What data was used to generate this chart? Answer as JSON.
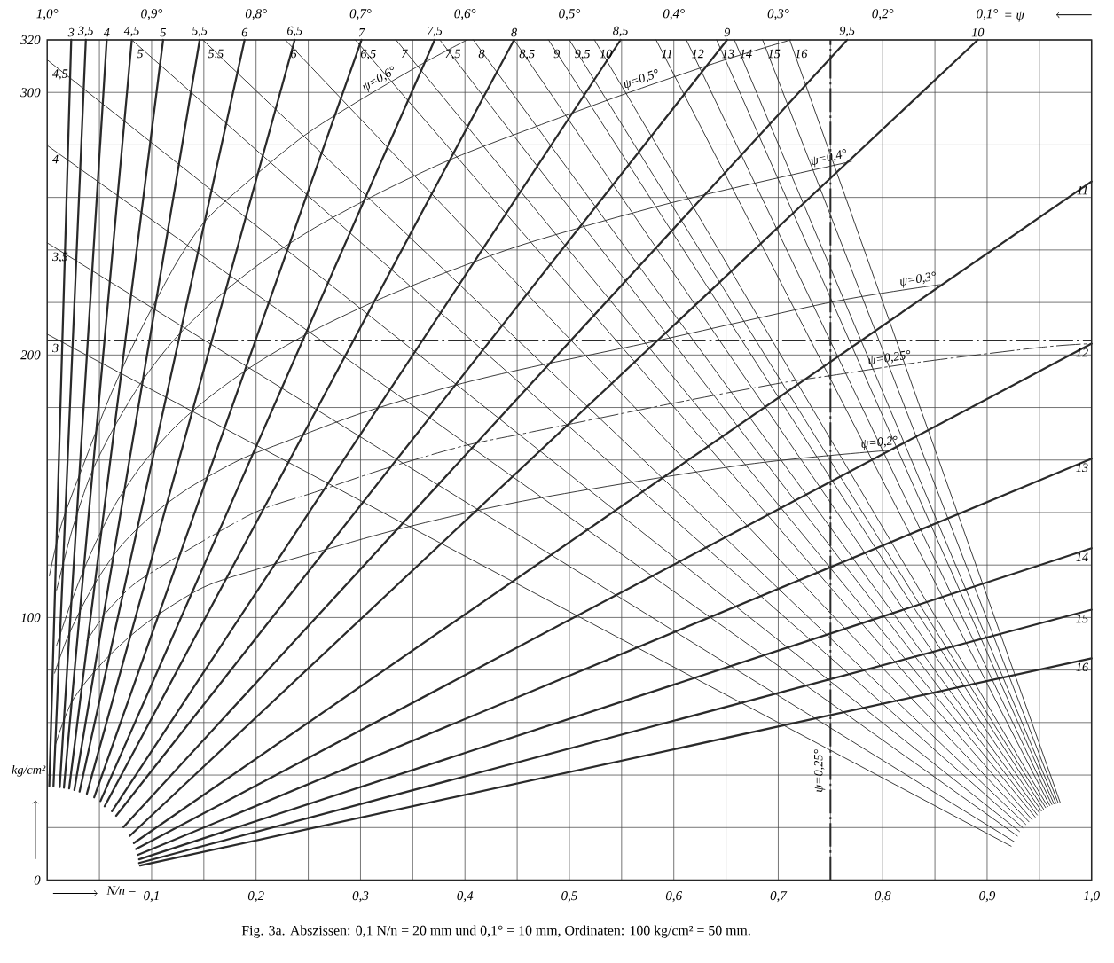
{
  "chart_data": {
    "type": "line",
    "xlabel": "N/n =",
    "ylabel": "kg/cm²",
    "x2label": "= ψ",
    "xlim": [
      0,
      1.0
    ],
    "ylim": [
      0,
      320
    ],
    "xticks": [
      {
        "value": 0.05,
        "label": null
      },
      {
        "value": 0.1,
        "label": "0,1"
      },
      {
        "value": 0.15,
        "label": null
      },
      {
        "value": 0.2,
        "label": "0,2"
      },
      {
        "value": 0.25,
        "label": null
      },
      {
        "value": 0.3,
        "label": "0,3"
      },
      {
        "value": 0.35,
        "label": null
      },
      {
        "value": 0.4,
        "label": "0,4"
      },
      {
        "value": 0.45,
        "label": null
      },
      {
        "value": 0.5,
        "label": "0,5"
      },
      {
        "value": 0.55,
        "label": null
      },
      {
        "value": 0.6,
        "label": "0,6"
      },
      {
        "value": 0.65,
        "label": null
      },
      {
        "value": 0.7,
        "label": "0,7"
      },
      {
        "value": 0.75,
        "label": null
      },
      {
        "value": 0.8,
        "label": "0,8"
      },
      {
        "value": 0.85,
        "label": null
      },
      {
        "value": 0.9,
        "label": "0,9"
      },
      {
        "value": 0.95,
        "label": null
      },
      {
        "value": 1.0,
        "label": "1,0"
      }
    ],
    "yticks": [
      0,
      {
        "value": 20,
        "label": null
      },
      {
        "value": 40,
        "label": null
      },
      {
        "value": 60,
        "label": null
      },
      {
        "value": 80,
        "label": null
      },
      100,
      {
        "value": 120,
        "label": null
      },
      {
        "value": 140,
        "label": null
      },
      {
        "value": 160,
        "label": null
      },
      {
        "value": 180,
        "label": null
      },
      200,
      {
        "value": 220,
        "label": null
      },
      {
        "value": 240,
        "label": null
      },
      {
        "value": 260,
        "label": null
      },
      {
        "value": 280,
        "label": null
      },
      300,
      320
    ],
    "x2lim": [
      1.0,
      0.0
    ],
    "x2ticks": [
      {
        "value": 1.0,
        "label": "1,0°"
      },
      {
        "value": 0.9,
        "label": "0,9°"
      },
      {
        "value": 0.8,
        "label": "0,8°"
      },
      {
        "value": 0.7,
        "label": "0,7°"
      },
      {
        "value": 0.6,
        "label": "0,6°"
      },
      {
        "value": 0.5,
        "label": "0,5°"
      },
      {
        "value": 0.4,
        "label": "0,4°"
      },
      {
        "value": 0.3,
        "label": "0,3°"
      },
      {
        "value": 0.2,
        "label": "0,2°"
      },
      {
        "value": 0.1,
        "label": "0,1°"
      }
    ],
    "grid": true,
    "ref_lines": [
      {
        "axis": "y",
        "value": 205.5,
        "line_style": "dashed",
        "color": "#2a2a2a"
      },
      {
        "axis": "x2",
        "value": 0.25,
        "label": "ψ=0,25°",
        "line_style": "dashed",
        "color": "#2a2a2a"
      }
    ],
    "annotations": [
      "Fig. 3a.  Abszissen: 0,1 N/n = 20 mm und 0,1° = 10 mm, Ordinaten: 100 kg/cm² = 50 mm."
    ],
    "series": [
      {
        "name": "3",
        "color": "#2a2a2a",
        "x": [
          0.002,
          0.023
        ],
        "values": [
          35.7,
          320
        ]
      },
      {
        "name": "3,5",
        "color": "#2a2a2a",
        "x": [
          0.006,
          0.037
        ],
        "values": [
          35.7,
          320
        ]
      },
      {
        "name": "4",
        "color": "#2a2a2a",
        "x": [
          0.012,
          0.057
        ],
        "values": [
          35.4,
          320
        ]
      },
      {
        "name": "4,5",
        "color": "#2a2a2a",
        "x": [
          0.016,
          0.081
        ],
        "values": [
          35.2,
          320
        ]
      },
      {
        "name": "5",
        "color": "#2a2a2a",
        "x": [
          0.021,
          0.111
        ],
        "values": [
          34.9,
          320
        ]
      },
      {
        "name": "5,5",
        "color": "#2a2a2a",
        "x": [
          0.026,
          0.146
        ],
        "values": [
          34.3,
          320
        ]
      },
      {
        "name": "6",
        "color": "#2a2a2a",
        "x": [
          0.031,
          0.189
        ],
        "values": [
          33.7,
          320
        ]
      },
      {
        "name": "6,5",
        "color": "#2a2a2a",
        "x": [
          0.038,
          0.237
        ],
        "values": [
          32.9,
          320
        ]
      },
      {
        "name": "7",
        "color": "#2a2a2a",
        "x": [
          0.045,
          0.301
        ],
        "values": [
          31.5,
          320
        ]
      },
      {
        "name": "7,5",
        "color": "#2a2a2a",
        "x": [
          0.051,
          0.371
        ],
        "values": [
          30.1,
          320
        ]
      },
      {
        "name": "8",
        "color": "#2a2a2a",
        "x": [
          0.055,
          0.447
        ],
        "values": [
          28.1,
          320
        ]
      },
      {
        "name": "8,5",
        "color": "#2a2a2a",
        "x": [
          0.062,
          0.549
        ],
        "values": [
          26.2,
          320
        ]
      },
      {
        "name": "9",
        "color": "#2a2a2a",
        "x": [
          0.066,
          0.651
        ],
        "values": [
          24.5,
          320
        ]
      },
      {
        "name": "9,5",
        "color": "#2a2a2a",
        "x": [
          0.073,
          0.766
        ],
        "values": [
          20.2,
          320
        ]
      },
      {
        "name": "10",
        "color": "#2a2a2a",
        "x": [
          0.079,
          0.891
        ],
        "values": [
          16.8,
          320
        ]
      },
      {
        "name": "11",
        "color": "#2a2a2a",
        "x": [
          0.083,
          1.0
        ],
        "values": [
          14.1,
          266.1
        ]
      },
      {
        "name": "12",
        "color": "#2a2a2a",
        "x": [
          0.085,
          1.0
        ],
        "values": [
          11.8,
          204.3
        ]
      },
      {
        "name": "13",
        "color": "#2a2a2a",
        "x": [
          0.087,
          1.0
        ],
        "values": [
          9.6,
          160.5
        ]
      },
      {
        "name": "14",
        "color": "#2a2a2a",
        "x": [
          0.088,
          1.0
        ],
        "values": [
          7.9,
          126.4
        ]
      },
      {
        "name": "15",
        "color": "#2a2a2a",
        "x": [
          0.088,
          1.0
        ],
        "values": [
          6.5,
          103.0
        ]
      },
      {
        "name": "16",
        "color": "#2a2a2a",
        "x": [
          0.089,
          1.0
        ],
        "values": [
          5.5,
          84.5
        ]
      },
      {
        "name": "3",
        "color": "#2a2a2a",
        "x": [
          0.923,
          0.0
        ],
        "values": [
          12.9,
          207.9
        ]
      },
      {
        "name": "3,5",
        "color": "#2a2a2a",
        "x": [
          0.926,
          0.0
        ],
        "values": [
          14.6,
          242.7
        ]
      },
      {
        "name": "4",
        "color": "#2a2a2a",
        "x": [
          0.929,
          0.0
        ],
        "values": [
          16.8,
          279.8
        ]
      },
      {
        "name": "4,5",
        "color": "#2a2a2a",
        "x": [
          0.931,
          0.0
        ],
        "values": [
          18.5,
          312.4
        ]
      },
      {
        "name": "5",
        "color": "#2a2a2a",
        "x": [
          0.934,
          0.081
        ],
        "values": [
          20.0,
          320
        ]
      },
      {
        "name": "5,5",
        "color": "#2a2a2a",
        "x": [
          0.937,
          0.149
        ],
        "values": [
          21.2,
          320
        ]
      },
      {
        "name": "6",
        "color": "#2a2a2a",
        "x": [
          0.94,
          0.228
        ],
        "values": [
          22.2,
          320
        ]
      },
      {
        "name": "6,5",
        "color": "#2a2a2a",
        "x": [
          0.943,
          0.295
        ],
        "values": [
          23.0,
          320
        ]
      },
      {
        "name": "7",
        "color": "#2a2a2a",
        "x": [
          0.946,
          0.334
        ],
        "values": [
          24.0,
          320
        ]
      },
      {
        "name": "7,5",
        "color": "#2a2a2a",
        "x": [
          0.948,
          0.376
        ],
        "values": [
          24.8,
          320
        ]
      },
      {
        "name": "8",
        "color": "#2a2a2a",
        "x": [
          0.95,
          0.408
        ],
        "values": [
          25.6,
          320
        ]
      },
      {
        "name": "8,5",
        "color": "#2a2a2a",
        "x": [
          0.952,
          0.447
        ],
        "values": [
          26.3,
          320
        ]
      },
      {
        "name": "9",
        "color": "#2a2a2a",
        "x": [
          0.954,
          0.48
        ],
        "values": [
          27.0,
          320
        ]
      },
      {
        "name": "9,5",
        "color": "#2a2a2a",
        "x": [
          0.956,
          0.5
        ],
        "values": [
          27.6,
          320
        ]
      },
      {
        "name": "10",
        "color": "#2a2a2a",
        "x": [
          0.958,
          0.524
        ],
        "values": [
          28.0,
          320
        ]
      },
      {
        "name": "11",
        "color": "#2a2a2a",
        "x": [
          0.96,
          0.583
        ],
        "values": [
          28.4,
          320
        ]
      },
      {
        "name": "12",
        "color": "#2a2a2a",
        "x": [
          0.962,
          0.612
        ],
        "values": [
          28.8,
          320
        ]
      },
      {
        "name": "13",
        "color": "#2a2a2a",
        "x": [
          0.964,
          0.641
        ],
        "values": [
          29.0,
          320
        ]
      },
      {
        "name": "14",
        "color": "#2a2a2a",
        "x": [
          0.966,
          0.658
        ],
        "values": [
          29.2,
          320
        ]
      },
      {
        "name": "15",
        "color": "#2a2a2a",
        "x": [
          0.968,
          0.685
        ],
        "values": [
          29.4,
          320
        ]
      },
      {
        "name": "16",
        "color": "#2a2a2a",
        "x": [
          0.97,
          0.711
        ],
        "values": [
          29.5,
          320
        ]
      },
      {
        "name": "ψ=0,6°",
        "color": "#2a2a2a",
        "x": [
          0.002,
          0.014,
          0.037,
          0.059,
          0.082,
          0.105,
          0.127,
          0.153,
          0.195,
          0.246,
          0.295,
          0.356,
          0.402
        ],
        "values": [
          115.8,
          135.9,
          160.6,
          183.2,
          203.5,
          221.4,
          237.2,
          251.8,
          267.0,
          283.5,
          296.0,
          310.2,
          320
        ]
      },
      {
        "name": "ψ=0,5°",
        "color": "#2a2a2a",
        "x": [
          0.009,
          0.024,
          0.042,
          0.064,
          0.091,
          0.122,
          0.158,
          0.202,
          0.256,
          0.322,
          0.389,
          0.464,
          0.553,
          0.648,
          0.712
        ],
        "values": [
          110.5,
          133.5,
          154.7,
          172.4,
          190.1,
          206.0,
          220.1,
          234.3,
          248.4,
          262.5,
          274.9,
          286.4,
          299.4,
          312.3,
          320
        ]
      },
      {
        "name": "ψ=0,4°",
        "color": "#2a2a2a",
        "x": [
          0.009,
          0.024,
          0.042,
          0.064,
          0.091,
          0.122,
          0.158,
          0.202,
          0.256,
          0.322,
          0.389,
          0.464,
          0.6,
          0.77
        ],
        "values": [
          89.4,
          107.0,
          124.7,
          142.3,
          158.3,
          172.4,
          184.8,
          197.2,
          209.5,
          221.9,
          232.5,
          243.1,
          258.2,
          273.7
        ]
      },
      {
        "name": "ψ=0,3°",
        "color": "#2a2a2a",
        "x": [
          0.007,
          0.02,
          0.042,
          0.069,
          0.1,
          0.136,
          0.184,
          0.229,
          0.3,
          0.389,
          0.464,
          0.577,
          0.753,
          0.855
        ],
        "values": [
          78.8,
          92.9,
          110.5,
          126.5,
          138.8,
          149.4,
          160.0,
          167.1,
          177.7,
          188.3,
          195.4,
          204.8,
          220.3,
          226.8
        ]
      },
      {
        "name": "ψ=0,25°",
        "color": "#2a2a2a",
        "line_style": "dashed",
        "x": [
          0.038,
          0.056,
          0.082,
          0.109,
          0.149,
          0.202,
          0.256,
          0.322,
          0.398,
          0.464,
          0.594,
          0.702,
          0.753,
          0.838,
          0.954,
          1.0
        ],
        "values": [
          91.1,
          101.7,
          112.3,
          119.4,
          129.1,
          140.6,
          147.7,
          156.5,
          165.3,
          170.7,
          181.2,
          189.3,
          192.3,
          197.4,
          203.0,
          204.3
        ]
      },
      {
        "name": "ψ=0,2°",
        "color": "#2a2a2a",
        "x": [
          0.007,
          0.024,
          0.056,
          0.096,
          0.149,
          0.202,
          0.256,
          0.344,
          0.464,
          0.668,
          0.804
        ],
        "values": [
          50.5,
          68.2,
          84.1,
          98.2,
          111.4,
          118.5,
          124.7,
          134.4,
          145.0,
          158.2,
          163.6
        ]
      }
    ]
  }
}
